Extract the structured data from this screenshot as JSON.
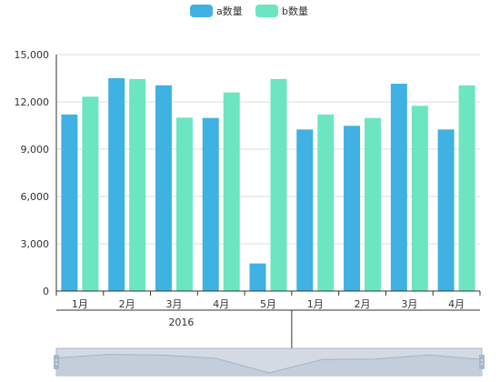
{
  "colors": {
    "series_a": "#3fb1e3",
    "series_b": "#6be6c1",
    "grid": "#dddddd",
    "axis": "#333333",
    "zoom_fill": "#d3dae4",
    "zoom_handle": "#a7b7cc"
  },
  "chart_data": {
    "type": "bar",
    "categories": [
      "1月",
      "2月",
      "3月",
      "4月",
      "5月",
      "1月",
      "2月",
      "3月",
      "4月"
    ],
    "group_axis": {
      "labels": [
        "2016"
      ]
    },
    "series": [
      {
        "name": "a数量",
        "values": [
          11200,
          13500,
          13050,
          10980,
          1750,
          10250,
          10480,
          13150,
          10250
        ]
      },
      {
        "name": "b数量",
        "values": [
          12330,
          13450,
          11000,
          12600,
          13450,
          11200,
          10980,
          11750,
          13050
        ]
      }
    ],
    "ylim": [
      0,
      15000
    ],
    "yticks": [
      "0",
      "3,000",
      "6,000",
      "9,000",
      "12,000",
      "15,000"
    ],
    "ytick_values": [
      0,
      3000,
      6000,
      9000,
      12000,
      15000
    ],
    "grid": true,
    "legend_position": "top-center",
    "data_zoom": true,
    "title": "",
    "xlabel": "",
    "ylabel": ""
  }
}
